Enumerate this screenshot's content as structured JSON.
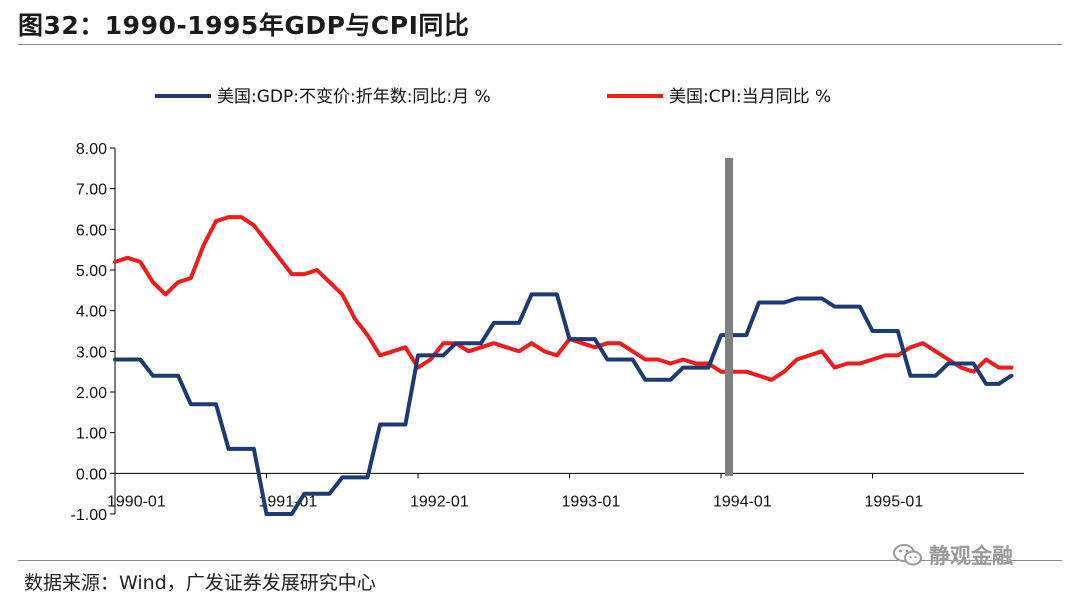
{
  "title": "图32：1990-1995年GDP与CPI同比",
  "source": "数据来源：Wind，广发证券发展研究中心",
  "watermark": "静观金融",
  "chart_data": {
    "type": "line",
    "title": "",
    "xlabel": "",
    "ylabel": "",
    "ylim": [
      -1,
      8
    ],
    "yticks": [
      "-1.00",
      "0.00",
      "1.00",
      "2.00",
      "3.00",
      "4.00",
      "5.00",
      "6.00",
      "7.00",
      "8.00"
    ],
    "xticks": [
      "1990-01",
      "1991-01",
      "1992-01",
      "1993-01",
      "1994-01",
      "1995-01"
    ],
    "x_start": "1990-01",
    "x_end": "1995-12",
    "marker_line_date": "1994-01",
    "legend_position": "top",
    "series": [
      {
        "name": "美国:GDP:不变价:折年数:同比:月 %",
        "color": "#1f3a70",
        "x": [
          "1990-01",
          "1990-02",
          "1990-03",
          "1990-04",
          "1990-05",
          "1990-06",
          "1990-07",
          "1990-08",
          "1990-09",
          "1990-10",
          "1990-11",
          "1990-12",
          "1991-01",
          "1991-02",
          "1991-03",
          "1991-04",
          "1991-05",
          "1991-06",
          "1991-07",
          "1991-08",
          "1991-09",
          "1991-10",
          "1991-11",
          "1991-12",
          "1992-01",
          "1992-02",
          "1992-03",
          "1992-04",
          "1992-05",
          "1992-06",
          "1992-07",
          "1992-08",
          "1992-09",
          "1992-10",
          "1992-11",
          "1992-12",
          "1993-01",
          "1993-02",
          "1993-03",
          "1993-04",
          "1993-05",
          "1993-06",
          "1993-07",
          "1993-08",
          "1993-09",
          "1993-10",
          "1993-11",
          "1993-12",
          "1994-01",
          "1994-02",
          "1994-03",
          "1994-04",
          "1994-05",
          "1994-06",
          "1994-07",
          "1994-08",
          "1994-09",
          "1994-10",
          "1994-11",
          "1994-12",
          "1995-01",
          "1995-02",
          "1995-03",
          "1995-04",
          "1995-05",
          "1995-06",
          "1995-07",
          "1995-08",
          "1995-09",
          "1995-10",
          "1995-11",
          "1995-12"
        ],
        "values": [
          2.8,
          2.8,
          2.8,
          2.4,
          2.4,
          2.4,
          1.7,
          1.7,
          1.7,
          0.6,
          0.6,
          0.6,
          -1.0,
          -1.0,
          -1.0,
          -0.5,
          -0.5,
          -0.5,
          -0.1,
          -0.1,
          -0.1,
          1.2,
          1.2,
          1.2,
          2.9,
          2.9,
          2.9,
          3.2,
          3.2,
          3.2,
          3.7,
          3.7,
          3.7,
          4.4,
          4.4,
          4.4,
          3.3,
          3.3,
          3.3,
          2.8,
          2.8,
          2.8,
          2.3,
          2.3,
          2.3,
          2.6,
          2.6,
          2.6,
          3.4,
          3.4,
          3.4,
          4.2,
          4.2,
          4.2,
          4.3,
          4.3,
          4.3,
          4.1,
          4.1,
          4.1,
          3.5,
          3.5,
          3.5,
          2.4,
          2.4,
          2.4,
          2.7,
          2.7,
          2.7,
          2.2,
          2.2,
          2.4
        ]
      },
      {
        "name": "美国:CPI:当月同比 %",
        "color": "#ee1c1c",
        "x": [
          "1990-01",
          "1990-02",
          "1990-03",
          "1990-04",
          "1990-05",
          "1990-06",
          "1990-07",
          "1990-08",
          "1990-09",
          "1990-10",
          "1990-11",
          "1990-12",
          "1991-01",
          "1991-02",
          "1991-03",
          "1991-04",
          "1991-05",
          "1991-06",
          "1991-07",
          "1991-08",
          "1991-09",
          "1991-10",
          "1991-11",
          "1991-12",
          "1992-01",
          "1992-02",
          "1992-03",
          "1992-04",
          "1992-05",
          "1992-06",
          "1992-07",
          "1992-08",
          "1992-09",
          "1992-10",
          "1992-11",
          "1992-12",
          "1993-01",
          "1993-02",
          "1993-03",
          "1993-04",
          "1993-05",
          "1993-06",
          "1993-07",
          "1993-08",
          "1993-09",
          "1993-10",
          "1993-11",
          "1993-12",
          "1994-01",
          "1994-02",
          "1994-03",
          "1994-04",
          "1994-05",
          "1994-06",
          "1994-07",
          "1994-08",
          "1994-09",
          "1994-10",
          "1994-11",
          "1994-12",
          "1995-01",
          "1995-02",
          "1995-03",
          "1995-04",
          "1995-05",
          "1995-06",
          "1995-07",
          "1995-08",
          "1995-09",
          "1995-10",
          "1995-11",
          "1995-12"
        ],
        "values": [
          5.2,
          5.3,
          5.2,
          4.7,
          4.4,
          4.7,
          4.8,
          5.6,
          6.2,
          6.3,
          6.3,
          6.1,
          5.7,
          5.3,
          4.9,
          4.9,
          5.0,
          4.7,
          4.4,
          3.8,
          3.4,
          2.9,
          3.0,
          3.1,
          2.6,
          2.8,
          3.2,
          3.2,
          3.0,
          3.1,
          3.2,
          3.1,
          3.0,
          3.2,
          3.0,
          2.9,
          3.3,
          3.2,
          3.1,
          3.2,
          3.2,
          3.0,
          2.8,
          2.8,
          2.7,
          2.8,
          2.7,
          2.7,
          2.5,
          2.5,
          2.5,
          2.4,
          2.3,
          2.5,
          2.8,
          2.9,
          3.0,
          2.6,
          2.7,
          2.7,
          2.8,
          2.9,
          2.9,
          3.1,
          3.2,
          3.0,
          2.8,
          2.6,
          2.5,
          2.8,
          2.6,
          2.6
        ]
      }
    ]
  }
}
